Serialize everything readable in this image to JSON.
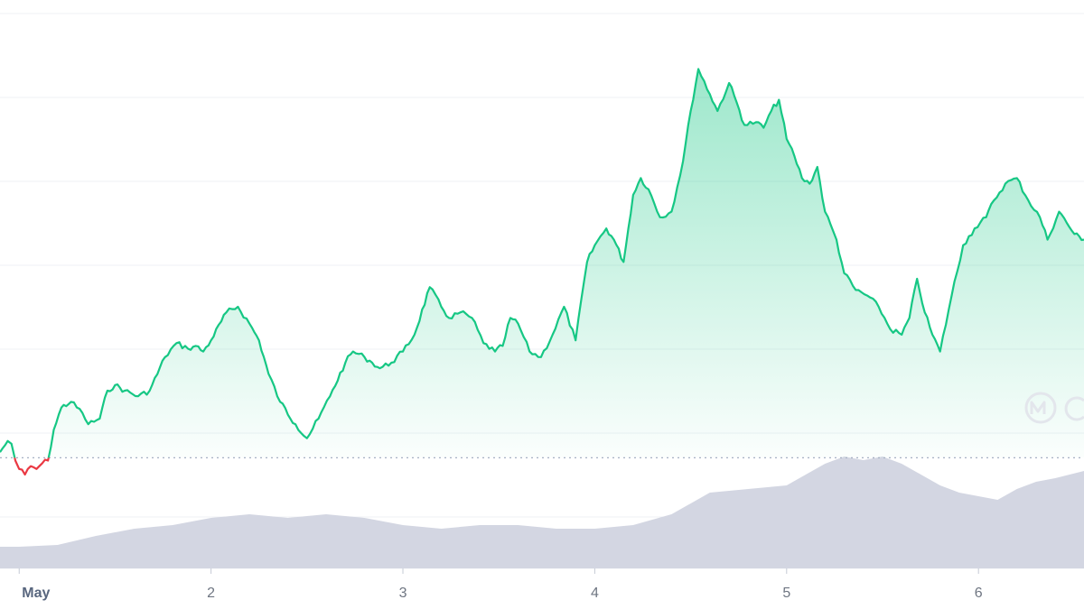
{
  "chart_data": {
    "type": "area",
    "x_tick_labels": [
      "May",
      "2",
      "3",
      "4",
      "5",
      "6"
    ],
    "x_tick_days": [
      1,
      2,
      3,
      4,
      5,
      6
    ],
    "x_range_days": [
      0.9,
      6.55
    ],
    "price_range": [
      0,
      100
    ],
    "baseline_value": 23,
    "gridlines": true,
    "price_series": {
      "x": [
        0.9,
        0.94,
        0.96,
        0.98,
        1.0,
        1.03,
        1.06,
        1.09,
        1.12,
        1.15,
        1.18,
        1.22,
        1.27,
        1.33,
        1.36,
        1.42,
        1.46,
        1.5,
        1.55,
        1.62,
        1.68,
        1.76,
        1.82,
        1.88,
        1.92,
        1.96,
        2.0,
        2.08,
        2.14,
        2.2,
        2.25,
        2.3,
        2.36,
        2.44,
        2.5,
        2.56,
        2.62,
        2.7,
        2.74,
        2.8,
        2.84,
        2.88,
        2.94,
        3.0,
        3.06,
        3.14,
        3.2,
        3.24,
        3.3,
        3.36,
        3.42,
        3.48,
        3.52,
        3.56,
        3.6,
        3.66,
        3.72,
        3.78,
        3.84,
        3.9,
        3.96,
        4.0,
        4.06,
        4.1,
        4.15,
        4.2,
        4.24,
        4.28,
        4.34,
        4.4,
        4.46,
        4.5,
        4.54,
        4.6,
        4.64,
        4.7,
        4.74,
        4.78,
        4.84,
        4.88,
        4.92,
        4.96,
        5.0,
        5.04,
        5.08,
        5.12,
        5.16,
        5.2,
        5.26,
        5.3,
        5.36,
        5.42,
        5.48,
        5.54,
        5.6,
        5.64,
        5.68,
        5.72,
        5.76,
        5.8,
        5.86,
        5.92,
        5.98,
        6.04,
        6.08,
        6.14,
        6.2,
        6.26,
        6.32,
        6.36,
        6.42,
        6.46,
        6.5,
        6.55
      ],
      "y": [
        24.0,
        26.0,
        25.5,
        22.5,
        21.0,
        20.0,
        21.5,
        21.0,
        22.0,
        22.5,
        28.0,
        32.0,
        33.0,
        31.0,
        29.0,
        30.0,
        35.0,
        36.0,
        35.0,
        34.0,
        35.0,
        41.0,
        43.5,
        42.5,
        43.0,
        42.0,
        44.0,
        49.0,
        50.0,
        47.0,
        44.0,
        38.0,
        33.0,
        29.0,
        26.5,
        30.0,
        34.0,
        40.0,
        42.0,
        41.0,
        40.0,
        39.0,
        40.0,
        42.0,
        45.0,
        53.5,
        50.0,
        48.0,
        49.0,
        48.0,
        43.5,
        42.0,
        43.0,
        48.0,
        47.0,
        42.0,
        41.0,
        45.0,
        50.0,
        44.0,
        58.0,
        61.0,
        64.0,
        62.0,
        58.0,
        70.0,
        73.0,
        71.0,
        66.0,
        67.0,
        76.0,
        85.0,
        92.5,
        88.0,
        85.0,
        90.0,
        86.5,
        82.5,
        83.0,
        82.0,
        85.0,
        87.0,
        80.0,
        77.0,
        73.0,
        72.0,
        75.0,
        67.0,
        62.0,
        56.0,
        53.0,
        52.0,
        50.0,
        46.0,
        45.0,
        48.0,
        55.0,
        49.0,
        45.0,
        42.0,
        52.0,
        61.0,
        64.0,
        66.0,
        69.0,
        72.0,
        73.0,
        69.0,
        66.0,
        62.0,
        67.0,
        65.0,
        63.0,
        62.0
      ],
      "note_above_baseline_color": "#16c784",
      "note_below_baseline_color": "#ea3943"
    },
    "volume_series": {
      "x": [
        0.9,
        1.0,
        1.2,
        1.4,
        1.6,
        1.8,
        2.0,
        2.2,
        2.4,
        2.6,
        2.8,
        3.0,
        3.2,
        3.4,
        3.6,
        3.8,
        4.0,
        4.2,
        4.4,
        4.6,
        4.8,
        5.0,
        5.1,
        5.2,
        5.3,
        5.4,
        5.5,
        5.6,
        5.7,
        5.8,
        5.9,
        6.0,
        6.1,
        6.2,
        6.3,
        6.4,
        6.55
      ],
      "y": [
        12,
        12,
        13,
        18,
        22,
        24,
        28,
        30,
        28,
        30,
        28,
        24,
        22,
        24,
        24,
        22,
        22,
        24,
        30,
        42,
        44,
        46,
        52,
        58,
        62,
        60,
        62,
        58,
        52,
        46,
        42,
        40,
        38,
        44,
        48,
        50,
        54
      ]
    },
    "colors": {
      "up_line": "#16c784",
      "down_line": "#ea3943",
      "area_fill_top": "#16c784",
      "volume_fill": "#d3d6e2",
      "grid": "#eff1f5",
      "baseline_dots": "#a6b0c3",
      "axis_label": "#6f7682"
    }
  }
}
